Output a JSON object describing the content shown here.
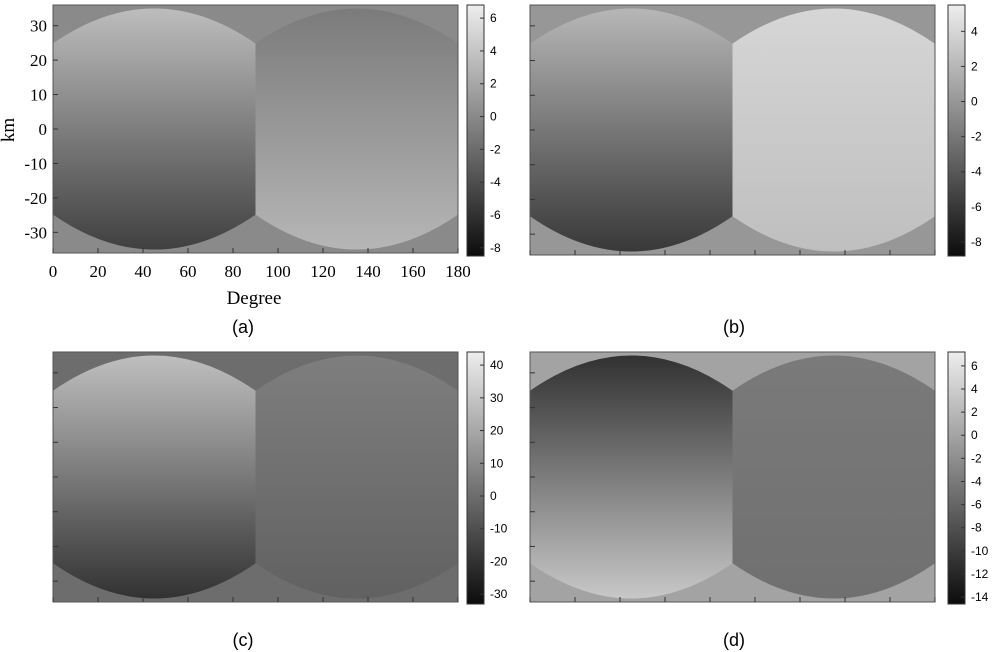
{
  "chart_data": [
    {
      "type": "heatmap",
      "panel": "a",
      "caption": "(a)",
      "xlabel": "Degree",
      "ylabel": "km",
      "xlim": [
        0,
        180
      ],
      "ylim": [
        -36,
        36
      ],
      "x_ticks": [
        0,
        20,
        40,
        60,
        80,
        100,
        120,
        140,
        160,
        180
      ],
      "y_ticks": [
        30,
        20,
        10,
        0,
        -10,
        -20,
        -30
      ],
      "colorbar": {
        "min": -8.5,
        "max": 6.8,
        "ticks": [
          6,
          4,
          2,
          0,
          -2,
          -4,
          -6,
          -8
        ]
      },
      "colormap": "grayscale",
      "background_value": 0,
      "lobes": [
        {
          "center_deg": 45,
          "half_width_deg": 45,
          "top_km": 35,
          "bottom_km": -35,
          "upper_tone": 3.5,
          "lower_tone": -5
        },
        {
          "center_deg": 135,
          "half_width_deg": 45,
          "top_km": 35,
          "bottom_km": -35,
          "upper_tone": -1,
          "lower_tone": 3
        }
      ]
    },
    {
      "type": "heatmap",
      "panel": "b",
      "caption": "(b)",
      "xlim": [
        0,
        180
      ],
      "ylim": [
        -36,
        36
      ],
      "colorbar": {
        "min": -8.8,
        "max": 5.5,
        "ticks": [
          4,
          2,
          0,
          -2,
          -4,
          -6,
          -8
        ]
      },
      "colormap": "grayscale",
      "background_value": 0,
      "lobes": [
        {
          "center_deg": 45,
          "half_width_deg": 45,
          "top_km": 35,
          "bottom_km": -35,
          "upper_tone": 2,
          "lower_tone": -6
        },
        {
          "center_deg": 135,
          "half_width_deg": 45,
          "top_km": 35,
          "bottom_km": -35,
          "upper_tone": 4,
          "lower_tone": 2.5
        }
      ]
    },
    {
      "type": "heatmap",
      "panel": "c",
      "caption": "(c)",
      "xlim": [
        0,
        180
      ],
      "ylim": [
        -36,
        36
      ],
      "colorbar": {
        "min": -33,
        "max": 44,
        "ticks": [
          40,
          30,
          20,
          10,
          0,
          -10,
          -20,
          -30
        ]
      },
      "colormap": "grayscale",
      "background_value": 0,
      "lobes": [
        {
          "center_deg": 45,
          "half_width_deg": 45,
          "top_km": 35,
          "bottom_km": -35,
          "upper_tone": 28,
          "lower_tone": -20
        },
        {
          "center_deg": 135,
          "half_width_deg": 45,
          "top_km": 35,
          "bottom_km": -35,
          "upper_tone": 6,
          "lower_tone": -4
        }
      ]
    },
    {
      "type": "heatmap",
      "panel": "d",
      "caption": "(d)",
      "xlim": [
        0,
        180
      ],
      "ylim": [
        -36,
        36
      ],
      "colorbar": {
        "min": -14.6,
        "max": 7.2,
        "ticks": [
          6,
          4,
          2,
          0,
          -2,
          -4,
          -6,
          -8,
          -10,
          -12,
          -14
        ]
      },
      "colormap": "grayscale",
      "background_value": 0,
      "lobes": [
        {
          "center_deg": 45,
          "half_width_deg": 45,
          "top_km": 35,
          "bottom_km": -35,
          "upper_tone": -11,
          "lower_tone": 3.5
        },
        {
          "center_deg": 135,
          "half_width_deg": 45,
          "top_km": 35,
          "bottom_km": -35,
          "upper_tone": -4,
          "lower_tone": -5
        }
      ]
    }
  ]
}
